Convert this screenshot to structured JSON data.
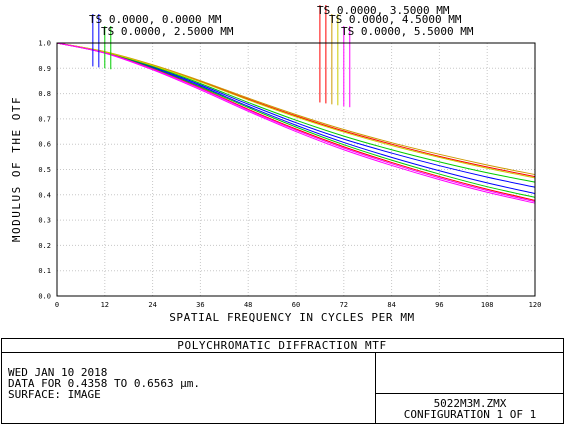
{
  "chart_data": {
    "type": "line",
    "title": "POLYCHROMATIC DIFFRACTION MTF",
    "xlabel": "SPATIAL FREQUENCY IN CYCLES PER MM",
    "ylabel": "MODULUS OF THE OTF",
    "xlim": [
      0,
      120
    ],
    "ylim": [
      0,
      1
    ],
    "x_ticks": [
      "0",
      "12",
      "24",
      "36",
      "48",
      "60",
      "72",
      "84",
      "96",
      "108",
      "120"
    ],
    "y_ticks": [
      "0.0",
      "0.1",
      "0.2",
      "0.3",
      "0.4",
      "0.5",
      "0.6",
      "0.7",
      "0.8",
      "0.9",
      "1.0"
    ],
    "grid": true,
    "x": [
      0,
      12,
      24,
      36,
      48,
      60,
      72,
      84,
      96,
      108,
      120
    ],
    "field_labels": [
      {
        "text": "TS 0.0000, 0.0000 MM",
        "markers": [
          {
            "color": "#0000ff",
            "x": 9
          },
          {
            "color": "#0000ff",
            "x": 10.5
          }
        ]
      },
      {
        "text": "TS 0.0000, 2.5000 MM",
        "markers": [
          {
            "color": "#00cc00",
            "x": 12
          },
          {
            "color": "#00cc00",
            "x": 13.5
          }
        ]
      },
      {
        "text": "TS 0.0000, 3.5000 MM",
        "markers": [
          {
            "color": "#ff0000",
            "x": 66
          },
          {
            "color": "#ff0000",
            "x": 67.5
          }
        ]
      },
      {
        "text": "TS 0.0000, 4.5000 MM",
        "markers": [
          {
            "color": "#cc9900",
            "x": 69
          },
          {
            "color": "#cccc00",
            "x": 70.5
          }
        ]
      },
      {
        "text": "TS 0.0000, 5.5000 MM",
        "markers": [
          {
            "color": "#ff00ff",
            "x": 72
          },
          {
            "color": "#ff00ff",
            "x": 73.5
          }
        ]
      }
    ],
    "series": [
      {
        "color": "#0000ff",
        "values": [
          1.0,
          0.963,
          0.905,
          0.835,
          0.758,
          0.685,
          0.62,
          0.565,
          0.515,
          0.47,
          0.43
        ]
      },
      {
        "color": "#0000ff",
        "values": [
          1.0,
          0.962,
          0.902,
          0.83,
          0.75,
          0.675,
          0.607,
          0.548,
          0.495,
          0.447,
          0.405
        ]
      },
      {
        "color": "#00cc00",
        "values": [
          1.0,
          0.964,
          0.908,
          0.84,
          0.765,
          0.695,
          0.632,
          0.578,
          0.53,
          0.487,
          0.45
        ]
      },
      {
        "color": "#00cc00",
        "values": [
          1.0,
          0.962,
          0.9,
          0.826,
          0.745,
          0.668,
          0.598,
          0.537,
          0.482,
          0.432,
          0.39
        ]
      },
      {
        "color": "#ff0000",
        "values": [
          1.0,
          0.965,
          0.912,
          0.848,
          0.778,
          0.712,
          0.652,
          0.6,
          0.552,
          0.51,
          0.472
        ]
      },
      {
        "color": "#ff0000",
        "values": [
          1.0,
          0.961,
          0.898,
          0.822,
          0.738,
          0.66,
          0.59,
          0.528,
          0.472,
          0.422,
          0.378
        ]
      },
      {
        "color": "#cc9900",
        "values": [
          1.0,
          0.966,
          0.914,
          0.851,
          0.782,
          0.717,
          0.658,
          0.606,
          0.56,
          0.518,
          0.48
        ]
      },
      {
        "color": "#cccc00",
        "values": [
          1.0,
          0.965,
          0.911,
          0.846,
          0.775,
          0.708,
          0.648,
          0.595,
          0.548,
          0.505,
          0.467
        ]
      },
      {
        "color": "#ff00ff",
        "values": [
          1.0,
          0.961,
          0.897,
          0.82,
          0.735,
          0.656,
          0.585,
          0.523,
          0.467,
          0.417,
          0.373
        ]
      },
      {
        "color": "#ff00ff",
        "values": [
          1.0,
          0.96,
          0.894,
          0.815,
          0.73,
          0.65,
          0.578,
          0.516,
          0.46,
          0.41,
          0.367
        ]
      }
    ]
  },
  "info": {
    "date": "WED JAN 10 2018",
    "data_range": "DATA FOR 0.4358 TO 0.6563 µm.",
    "surface": "SURFACE: IMAGE",
    "file": "5022M3M.ZMX",
    "configuration": "CONFIGURATION 1 OF 1"
  }
}
